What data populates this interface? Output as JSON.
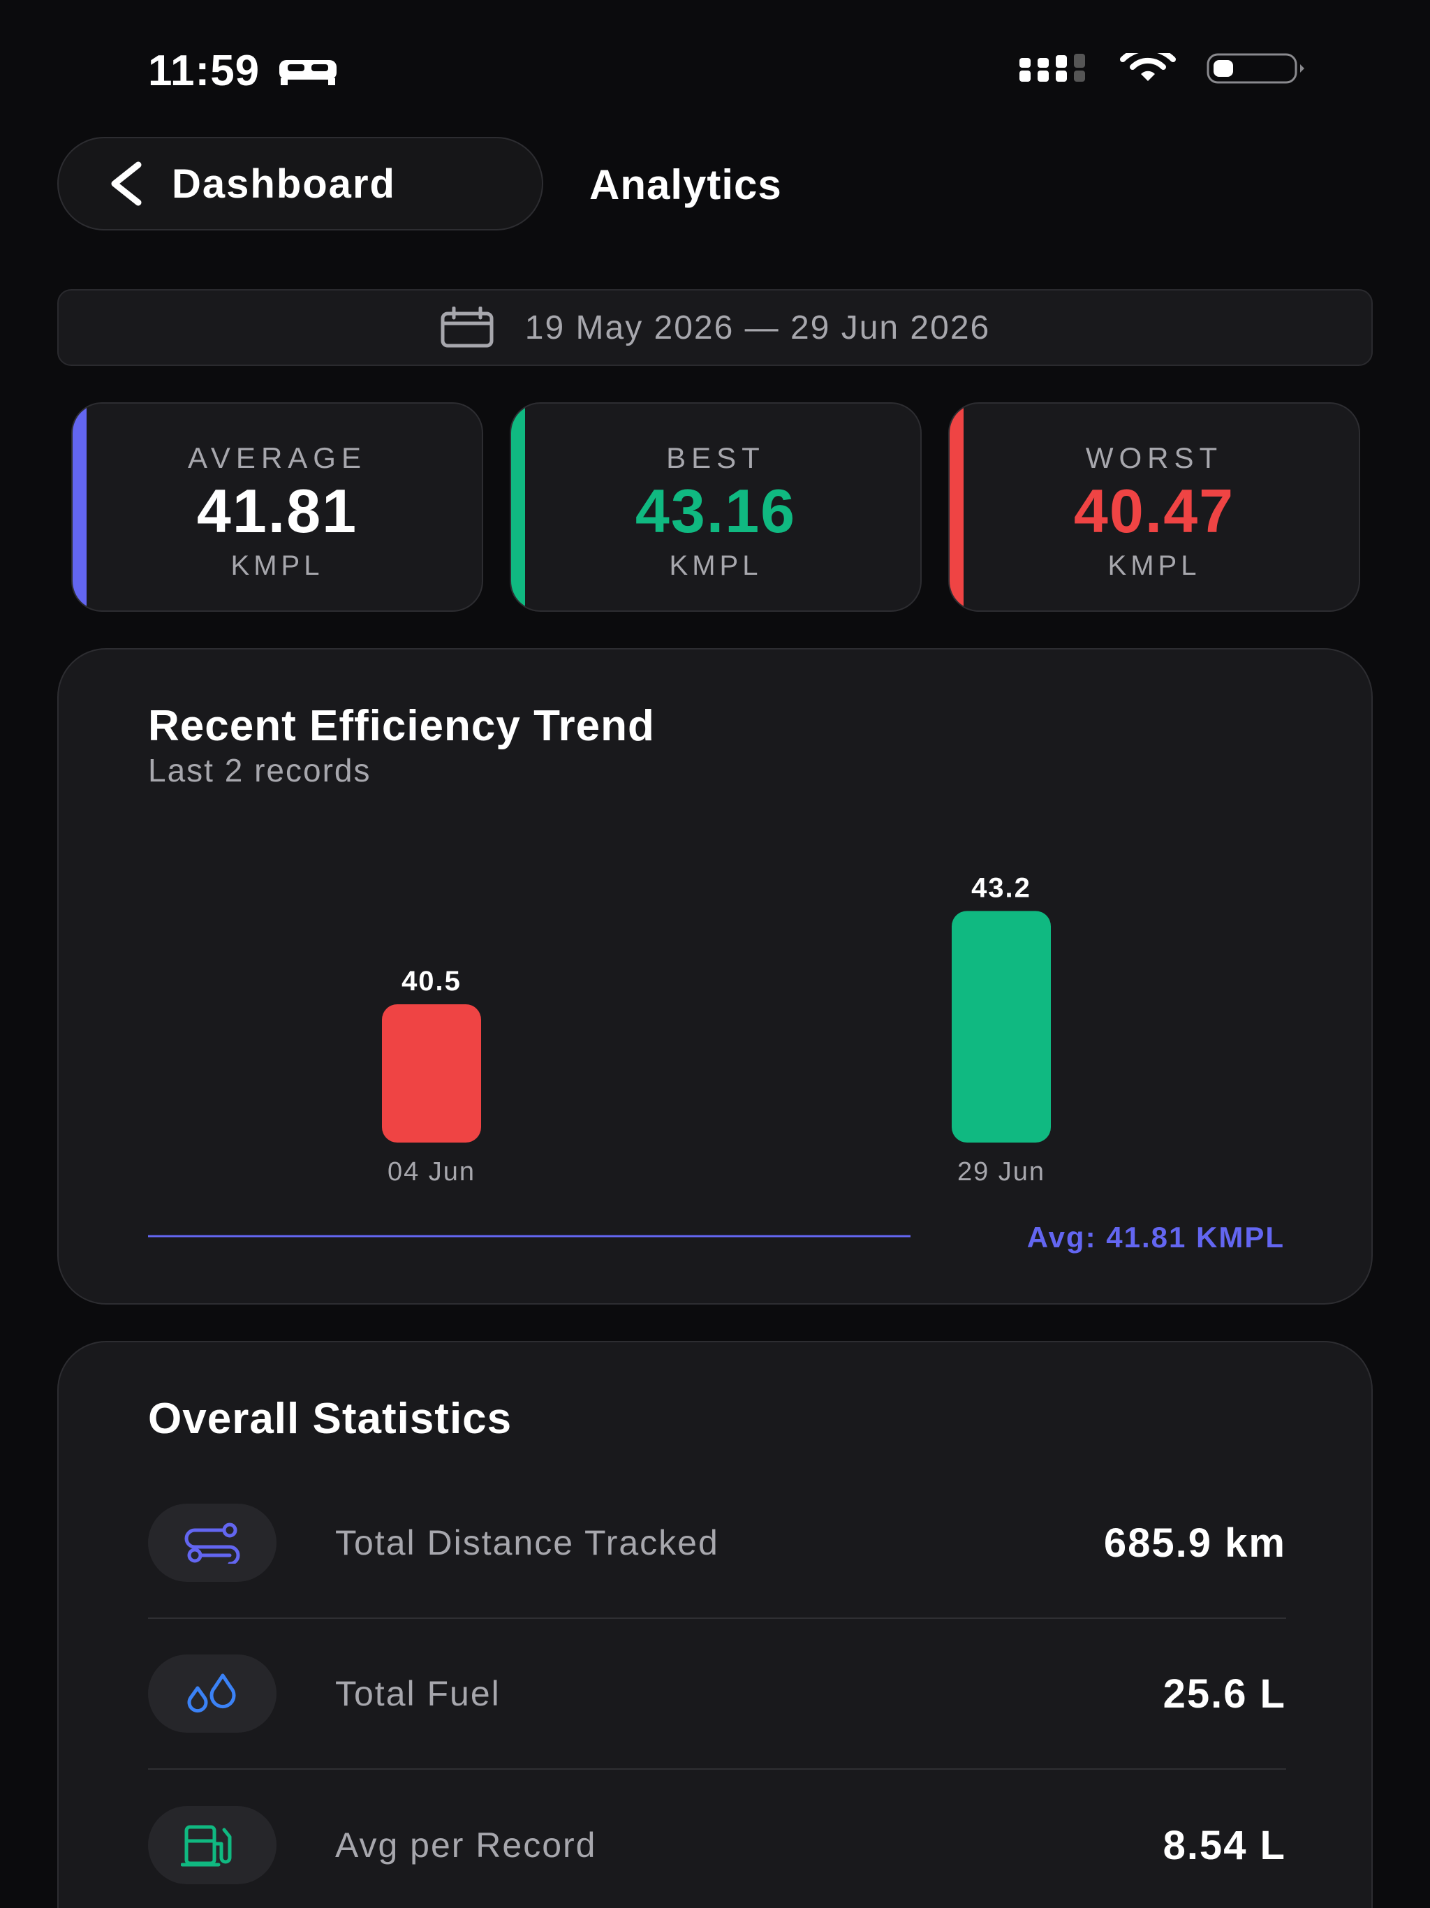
{
  "status_bar": {
    "time": "11:59"
  },
  "header": {
    "back_label": "Dashboard",
    "title": "Analytics"
  },
  "date_range": {
    "text": "19 May 2026 — 29 Jun 2026"
  },
  "stats": {
    "average": {
      "label": "AVERAGE",
      "value": "41.81",
      "unit": "KMPL",
      "color": "#6366f1"
    },
    "best": {
      "label": "BEST",
      "value": "43.16",
      "unit": "KMPL",
      "color": "#10b981"
    },
    "worst": {
      "label": "WORST",
      "value": "40.47",
      "unit": "KMPL",
      "color": "#ef4444"
    }
  },
  "trend": {
    "title": "Recent Efficiency Trend",
    "subtitle": "Last 2 records",
    "avg_label": "Avg: 41.81 KMPL"
  },
  "chart_data": {
    "type": "bar",
    "categories": [
      "04 Jun",
      "29 Jun"
    ],
    "values": [
      40.5,
      43.2
    ],
    "value_labels": [
      "40.5",
      "43.2"
    ],
    "colors": [
      "#ef4444",
      "#10b981"
    ],
    "average": 41.81,
    "title": "Recent Efficiency Trend",
    "subtitle": "Last 2 records",
    "annotation": "Avg: 41.81 KMPL",
    "grid": false
  },
  "overall": {
    "title": "Overall Statistics",
    "rows": [
      {
        "label": "Total Distance Tracked",
        "value": "685.9 km",
        "icon": "route-icon",
        "icon_color": "#6366f1"
      },
      {
        "label": "Total Fuel",
        "value": "25.6 L",
        "icon": "fuel-drops-icon",
        "icon_color": "#3b82f6"
      },
      {
        "label": "Avg per Record",
        "value": "8.54 L",
        "icon": "fuel-pump-icon",
        "icon_color": "#10b981"
      }
    ]
  }
}
